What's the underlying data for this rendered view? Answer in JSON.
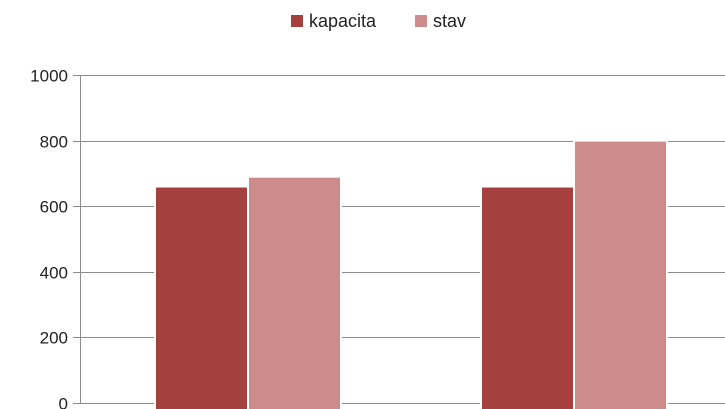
{
  "chart_data": {
    "type": "bar",
    "categories": [
      "",
      ""
    ],
    "series": [
      {
        "name": "kapacita",
        "values": [
          660,
          660
        ],
        "color": "#a5403e"
      },
      {
        "name": "stav",
        "values": [
          690,
          800
        ],
        "color": "#cd8c8c"
      }
    ],
    "ylim": [
      0,
      1000
    ],
    "yticks": [
      0,
      200,
      400,
      600,
      800,
      1000
    ],
    "grid": true,
    "legend": "top-center",
    "title": "",
    "xlabel": "",
    "ylabel": ""
  }
}
